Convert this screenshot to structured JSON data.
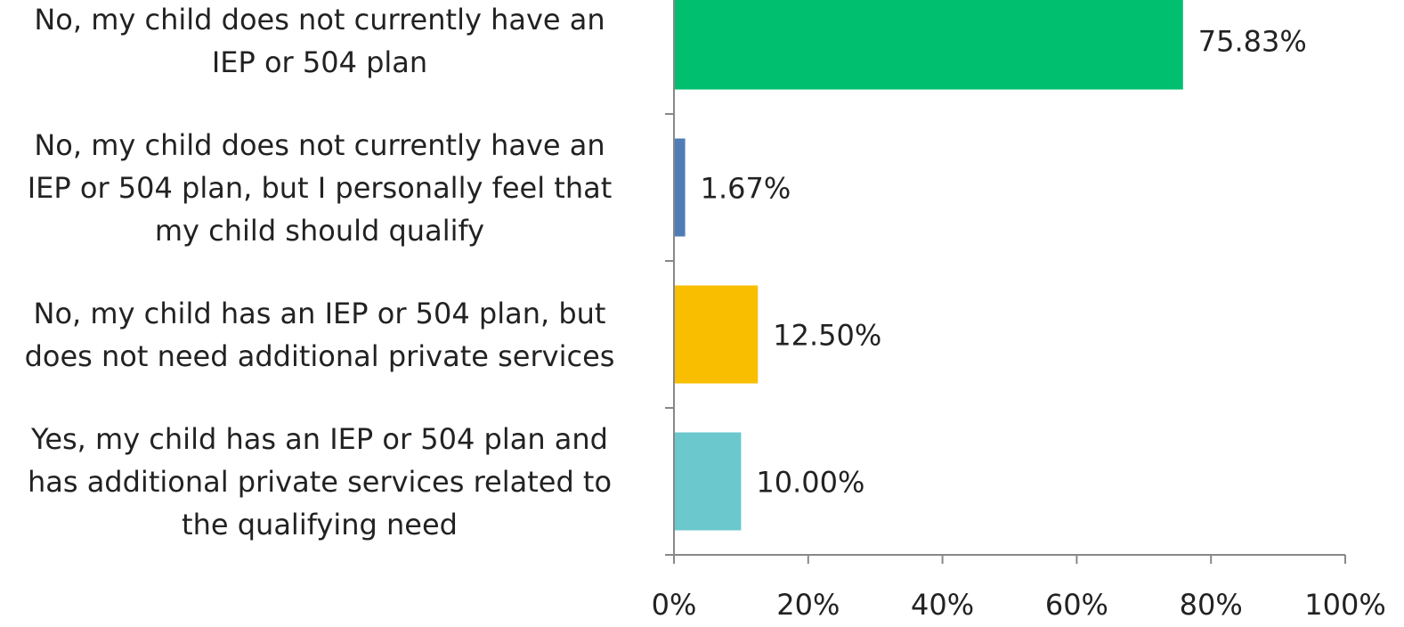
{
  "chart_data": {
    "type": "bar",
    "orientation": "horizontal",
    "categories": [
      [
        "No, my child does not currently have an",
        "IEP or 504 plan"
      ],
      [
        "No, my child does not currently have an",
        "IEP or 504 plan, but I personally feel that",
        "my child should qualify"
      ],
      [
        "No, my child has an IEP or 504 plan, but",
        "does not need additional private services"
      ],
      [
        "Yes, my child has an IEP or 504 plan and",
        "has additional private services related to",
        "the qualifying need"
      ]
    ],
    "values": [
      75.83,
      1.67,
      12.5,
      10.0
    ],
    "data_labels": [
      "75.83%",
      "1.67%",
      "12.50%",
      "10.00%"
    ],
    "colors": [
      "#00BF6F",
      "#507CB6",
      "#F9BE00",
      "#6BC8CD"
    ],
    "xlim": [
      0,
      100
    ],
    "x_ticks": [
      0,
      20,
      40,
      60,
      80,
      100
    ],
    "x_tick_labels": [
      "0%",
      "20%",
      "40%",
      "60%",
      "80%",
      "100%"
    ],
    "axis_color": "#888888",
    "text_color": "#222222",
    "grid": false,
    "legend": "none"
  }
}
